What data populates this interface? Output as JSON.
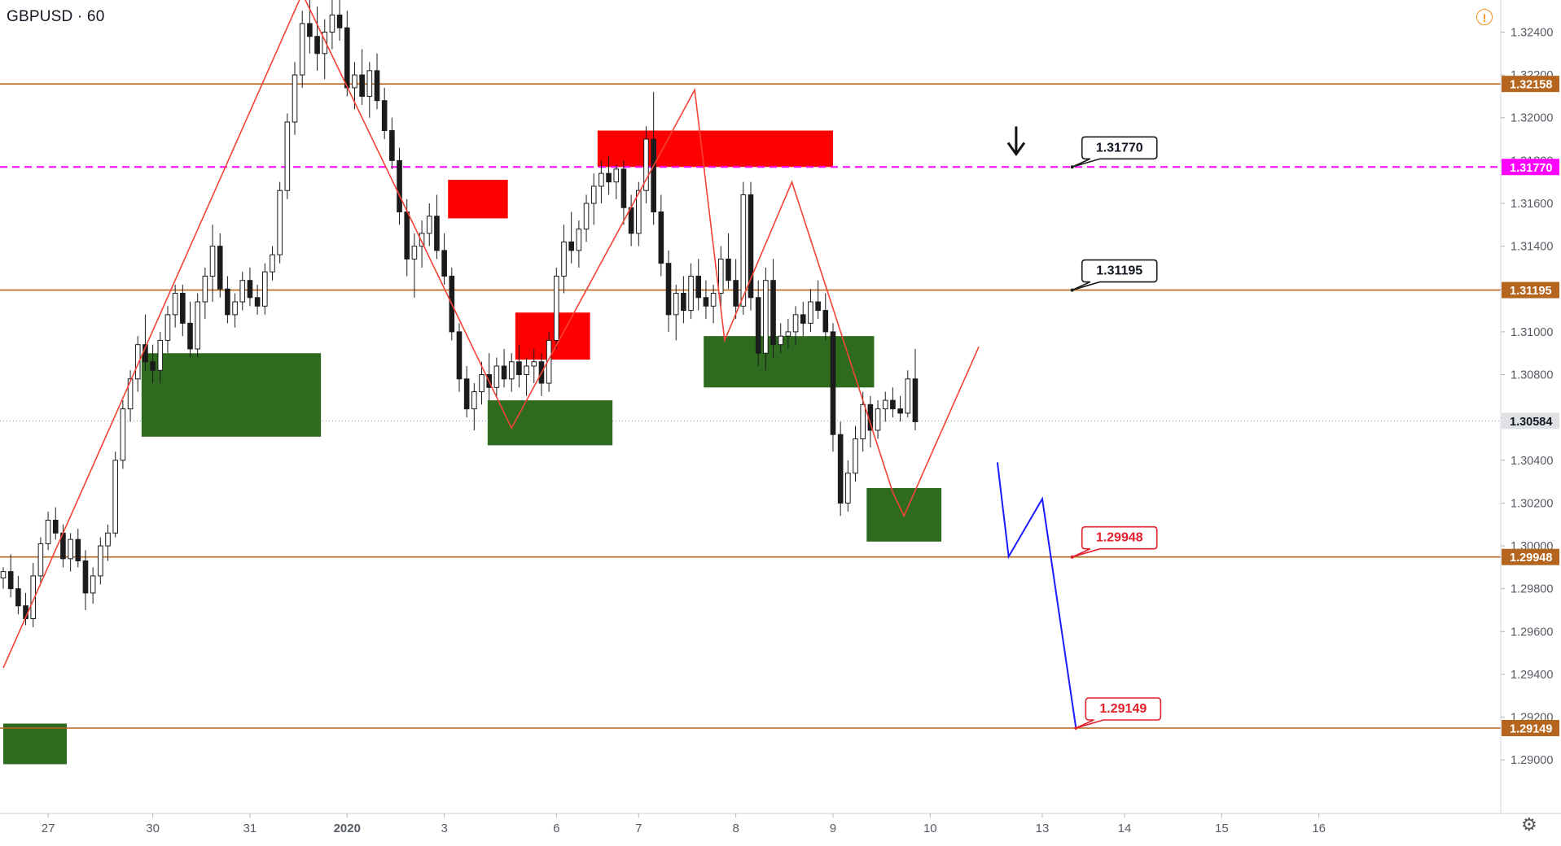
{
  "header": {
    "symbol": "GBPUSD · 60"
  },
  "icons": {
    "alert": "alert-circle-icon",
    "settings": "gear-icon",
    "arrow": "arrow-down-icon"
  },
  "colors": {
    "level_line": "#b5651d",
    "target_line": "#ff00ff",
    "supply": "#ff0000",
    "demand": "#2f6b1f",
    "zigzag": "#f44336",
    "projection": "#1a1aff",
    "candle": "#1b1b1b",
    "label_red": "#e0202b"
  },
  "chart_data": {
    "type": "candlestick",
    "ylim": [
      1.2875,
      1.3255
    ],
    "y_ticks": [
      "1.32400",
      "1.32200",
      "1.32000",
      "1.31800",
      "1.31600",
      "1.31400",
      "1.31200",
      "1.31000",
      "1.30800",
      "1.30600",
      "1.30400",
      "1.30200",
      "1.30000",
      "1.29800",
      "1.29600",
      "1.29400",
      "1.29200",
      "1.29000"
    ],
    "x_ticks": [
      {
        "label": "27",
        "i": 6
      },
      {
        "label": "30",
        "i": 20
      },
      {
        "label": "31",
        "i": 33
      },
      {
        "label": "2020",
        "i": 46,
        "bold": true
      },
      {
        "label": "3",
        "i": 59
      },
      {
        "label": "6",
        "i": 74
      },
      {
        "label": "7",
        "i": 85
      },
      {
        "label": "8",
        "i": 98
      },
      {
        "label": "9",
        "i": 111
      },
      {
        "label": "10",
        "i": 124
      },
      {
        "label": "13",
        "i": 139
      },
      {
        "label": "14",
        "i": 150
      },
      {
        "label": "15",
        "i": 163
      },
      {
        "label": "16",
        "i": 176
      }
    ],
    "current_price": "1.30584",
    "levels": [
      {
        "price": 1.32158,
        "label": "1.32158",
        "style": "solid"
      },
      {
        "price": 1.31195,
        "label": "1.31195",
        "style": "solid"
      },
      {
        "price": 1.29948,
        "label": "1.29948",
        "style": "solid"
      },
      {
        "price": 1.29149,
        "label": "1.29149",
        "style": "solid"
      },
      {
        "price": 1.3177,
        "label": "1.31770",
        "style": "dashed"
      }
    ],
    "callouts": [
      {
        "i": 143,
        "price": 1.3177,
        "text": "1.31770",
        "color": "dark"
      },
      {
        "i": 143,
        "price": 1.31195,
        "text": "1.31195",
        "color": "dark"
      },
      {
        "i": 143,
        "price": 1.29948,
        "text": "1.29948",
        "color": "red"
      },
      {
        "i": 143.5,
        "price": 1.29149,
        "text": "1.29149",
        "color": "red"
      }
    ],
    "supply_zones": [
      {
        "i0": 59.5,
        "i1": 67.5,
        "p0": 1.3153,
        "p1": 1.3171
      },
      {
        "i0": 68.5,
        "i1": 78.5,
        "p0": 1.3087,
        "p1": 1.3109
      },
      {
        "i0": 79.5,
        "i1": 111,
        "p0": 1.3177,
        "p1": 1.3194
      }
    ],
    "demand_zones": [
      {
        "i0": 18.5,
        "i1": 42.5,
        "p0": 1.3051,
        "p1": 1.309
      },
      {
        "i0": 64.8,
        "i1": 81.5,
        "p0": 1.3047,
        "p1": 1.3068
      },
      {
        "i0": 93.7,
        "i1": 116.5,
        "p0": 1.3074,
        "p1": 1.3098
      },
      {
        "i0": 115.5,
        "i1": 125.5,
        "p0": 1.3002,
        "p1": 1.3027
      },
      {
        "i0": 0,
        "i1": 8.5,
        "p0": 1.2898,
        "p1": 1.2917
      }
    ],
    "zigzag": [
      {
        "i": 0,
        "p": 1.2943
      },
      {
        "i": 40,
        "p": 1.3258
      },
      {
        "i": 68,
        "p": 1.3055
      },
      {
        "i": 92.5,
        "p": 1.3213
      },
      {
        "i": 96.5,
        "p": 1.3096
      },
      {
        "i": 105.5,
        "p": 1.317
      },
      {
        "i": 119,
        "p": 1.3025
      },
      {
        "i": 120.5,
        "p": 1.3014
      },
      {
        "i": 130.5,
        "p": 1.3093
      }
    ],
    "projection": [
      {
        "i": 133,
        "p": 1.3039
      },
      {
        "i": 134.5,
        "p": 1.2995
      },
      {
        "i": 139,
        "p": 1.3022
      },
      {
        "i": 143.5,
        "p": 1.2915
      }
    ],
    "arrow_marker": {
      "i": 135.5,
      "p": 1.3183
    },
    "candles": [
      [
        1.2985,
        1.299,
        1.298,
        1.2988
      ],
      [
        1.2988,
        1.2996,
        1.2976,
        1.298
      ],
      [
        1.298,
        1.2986,
        1.2968,
        1.2972
      ],
      [
        1.2972,
        1.2978,
        1.2963,
        1.2966
      ],
      [
        1.2966,
        1.2992,
        1.2962,
        1.2986
      ],
      [
        1.2986,
        1.3004,
        1.2982,
        1.3001
      ],
      [
        1.3001,
        1.3016,
        1.2998,
        1.3012
      ],
      [
        1.3012,
        1.3018,
        1.3003,
        1.3006
      ],
      [
        1.3006,
        1.301,
        1.299,
        1.2994
      ],
      [
        1.2994,
        1.3006,
        1.2988,
        1.3003
      ],
      [
        1.3003,
        1.3008,
        1.299,
        1.2993
      ],
      [
        1.2993,
        1.2998,
        1.297,
        1.2978
      ],
      [
        1.2978,
        1.299,
        1.2973,
        1.2986
      ],
      [
        1.2986,
        1.3004,
        1.2982,
        1.3
      ],
      [
        1.3,
        1.301,
        1.2993,
        1.3006
      ],
      [
        1.3006,
        1.3044,
        1.3004,
        1.304
      ],
      [
        1.304,
        1.3068,
        1.3036,
        1.3064
      ],
      [
        1.3064,
        1.3082,
        1.3058,
        1.3078
      ],
      [
        1.3078,
        1.3098,
        1.3072,
        1.3094
      ],
      [
        1.3094,
        1.3108,
        1.3082,
        1.3086
      ],
      [
        1.3086,
        1.3094,
        1.3076,
        1.3082
      ],
      [
        1.3082,
        1.31,
        1.3076,
        1.3096
      ],
      [
        1.3096,
        1.3112,
        1.309,
        1.3108
      ],
      [
        1.3108,
        1.3122,
        1.3102,
        1.3118
      ],
      [
        1.3118,
        1.3122,
        1.3098,
        1.3104
      ],
      [
        1.3104,
        1.3114,
        1.3088,
        1.3092
      ],
      [
        1.3092,
        1.3118,
        1.3088,
        1.3114
      ],
      [
        1.3114,
        1.313,
        1.3106,
        1.3126
      ],
      [
        1.3126,
        1.315,
        1.3114,
        1.314
      ],
      [
        1.314,
        1.3146,
        1.3116,
        1.312
      ],
      [
        1.312,
        1.3126,
        1.3104,
        1.3108
      ],
      [
        1.3108,
        1.3118,
        1.3102,
        1.3114
      ],
      [
        1.3114,
        1.3128,
        1.311,
        1.3124
      ],
      [
        1.3124,
        1.313,
        1.3112,
        1.3116
      ],
      [
        1.3116,
        1.3122,
        1.3108,
        1.3112
      ],
      [
        1.3112,
        1.3132,
        1.3108,
        1.3128
      ],
      [
        1.3128,
        1.314,
        1.3124,
        1.3136
      ],
      [
        1.3136,
        1.317,
        1.3132,
        1.3166
      ],
      [
        1.3166,
        1.3202,
        1.3162,
        1.3198
      ],
      [
        1.3198,
        1.3226,
        1.3192,
        1.322
      ],
      [
        1.322,
        1.325,
        1.3214,
        1.3244
      ],
      [
        1.3244,
        1.3256,
        1.323,
        1.3238
      ],
      [
        1.3238,
        1.3252,
        1.3222,
        1.323
      ],
      [
        1.323,
        1.3246,
        1.3218,
        1.324
      ],
      [
        1.324,
        1.3256,
        1.3232,
        1.3248
      ],
      [
        1.3248,
        1.3258,
        1.3236,
        1.3242
      ],
      [
        1.3242,
        1.325,
        1.321,
        1.3214
      ],
      [
        1.3214,
        1.3226,
        1.3204,
        1.322
      ],
      [
        1.322,
        1.3232,
        1.3206,
        1.321
      ],
      [
        1.321,
        1.3226,
        1.32,
        1.3222
      ],
      [
        1.3222,
        1.323,
        1.3204,
        1.3208
      ],
      [
        1.3208,
        1.3214,
        1.319,
        1.3194
      ],
      [
        1.3194,
        1.32,
        1.3176,
        1.318
      ],
      [
        1.318,
        1.3186,
        1.315,
        1.3156
      ],
      [
        1.3156,
        1.3162,
        1.3126,
        1.3134
      ],
      [
        1.3134,
        1.3146,
        1.3116,
        1.314
      ],
      [
        1.314,
        1.3152,
        1.313,
        1.3146
      ],
      [
        1.3146,
        1.316,
        1.314,
        1.3154
      ],
      [
        1.3154,
        1.3164,
        1.3134,
        1.3138
      ],
      [
        1.3138,
        1.3146,
        1.3122,
        1.3126
      ],
      [
        1.3126,
        1.313,
        1.3096,
        1.31
      ],
      [
        1.31,
        1.3104,
        1.3072,
        1.3078
      ],
      [
        1.3078,
        1.3084,
        1.306,
        1.3064
      ],
      [
        1.3064,
        1.3076,
        1.3054,
        1.3072
      ],
      [
        1.3072,
        1.3086,
        1.3066,
        1.308
      ],
      [
        1.308,
        1.309,
        1.3068,
        1.3074
      ],
      [
        1.3074,
        1.3088,
        1.307,
        1.3084
      ],
      [
        1.3084,
        1.3092,
        1.3074,
        1.3078
      ],
      [
        1.3078,
        1.309,
        1.3072,
        1.3086
      ],
      [
        1.3086,
        1.3094,
        1.3074,
        1.308
      ],
      [
        1.308,
        1.3088,
        1.307,
        1.3084
      ],
      [
        1.3084,
        1.3092,
        1.3076,
        1.3086
      ],
      [
        1.3086,
        1.309,
        1.307,
        1.3076
      ],
      [
        1.3076,
        1.31,
        1.3072,
        1.3096
      ],
      [
        1.3096,
        1.313,
        1.3092,
        1.3126
      ],
      [
        1.3126,
        1.315,
        1.3118,
        1.3142
      ],
      [
        1.3142,
        1.3156,
        1.3132,
        1.3138
      ],
      [
        1.3138,
        1.3152,
        1.313,
        1.3148
      ],
      [
        1.3148,
        1.3164,
        1.3142,
        1.316
      ],
      [
        1.316,
        1.3174,
        1.315,
        1.3168
      ],
      [
        1.3168,
        1.318,
        1.316,
        1.3174
      ],
      [
        1.3174,
        1.3182,
        1.3164,
        1.317
      ],
      [
        1.317,
        1.3178,
        1.3162,
        1.3176
      ],
      [
        1.3176,
        1.318,
        1.315,
        1.3158
      ],
      [
        1.3158,
        1.3164,
        1.314,
        1.3146
      ],
      [
        1.3146,
        1.317,
        1.314,
        1.3166
      ],
      [
        1.3166,
        1.3196,
        1.316,
        1.319
      ],
      [
        1.319,
        1.3212,
        1.315,
        1.3156
      ],
      [
        1.3156,
        1.3164,
        1.3126,
        1.3132
      ],
      [
        1.3132,
        1.3138,
        1.31,
        1.3108
      ],
      [
        1.3108,
        1.3122,
        1.3096,
        1.3118
      ],
      [
        1.3118,
        1.3126,
        1.3104,
        1.311
      ],
      [
        1.311,
        1.3132,
        1.3106,
        1.3126
      ],
      [
        1.3126,
        1.3134,
        1.311,
        1.3116
      ],
      [
        1.3116,
        1.3124,
        1.3106,
        1.3112
      ],
      [
        1.3112,
        1.3122,
        1.3104,
        1.3118
      ],
      [
        1.3118,
        1.314,
        1.3112,
        1.3134
      ],
      [
        1.3134,
        1.3146,
        1.312,
        1.3124
      ],
      [
        1.3124,
        1.3134,
        1.3106,
        1.3112
      ],
      [
        1.3112,
        1.317,
        1.3108,
        1.3164
      ],
      [
        1.3164,
        1.317,
        1.311,
        1.3116
      ],
      [
        1.3116,
        1.3124,
        1.3084,
        1.309
      ],
      [
        1.309,
        1.313,
        1.3082,
        1.3124
      ],
      [
        1.3124,
        1.3134,
        1.3088,
        1.3094
      ],
      [
        1.3094,
        1.3104,
        1.309,
        1.3098
      ],
      [
        1.3098,
        1.3106,
        1.3092,
        1.31
      ],
      [
        1.31,
        1.3112,
        1.3094,
        1.3108
      ],
      [
        1.3108,
        1.3114,
        1.3098,
        1.3104
      ],
      [
        1.3104,
        1.312,
        1.31,
        1.3114
      ],
      [
        1.3114,
        1.3124,
        1.3106,
        1.311
      ],
      [
        1.311,
        1.3118,
        1.3096,
        1.31
      ],
      [
        1.31,
        1.3104,
        1.3044,
        1.3052
      ],
      [
        1.3052,
        1.3058,
        1.3014,
        1.302
      ],
      [
        1.302,
        1.304,
        1.3016,
        1.3034
      ],
      [
        1.3034,
        1.3056,
        1.303,
        1.305
      ],
      [
        1.305,
        1.3072,
        1.3044,
        1.3066
      ],
      [
        1.3066,
        1.307,
        1.3046,
        1.3054
      ],
      [
        1.3054,
        1.3068,
        1.305,
        1.3064
      ],
      [
        1.3064,
        1.3072,
        1.3058,
        1.3068
      ],
      [
        1.3068,
        1.3074,
        1.306,
        1.3064
      ],
      [
        1.3064,
        1.307,
        1.3058,
        1.3062
      ],
      [
        1.3062,
        1.3082,
        1.306,
        1.3078
      ],
      [
        1.3078,
        1.3092,
        1.3054,
        1.3058
      ]
    ]
  }
}
